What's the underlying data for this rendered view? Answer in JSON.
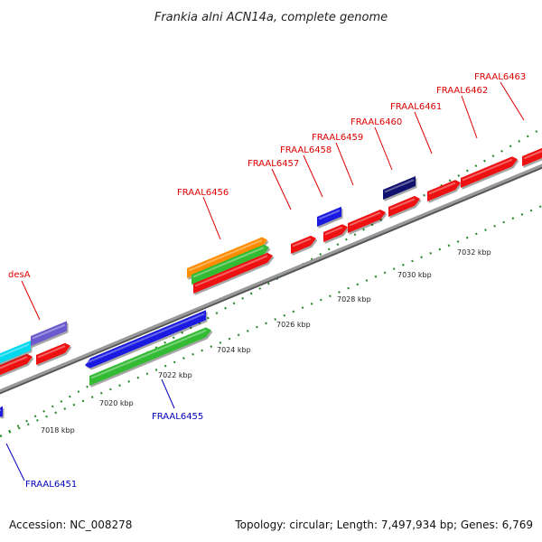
{
  "map_title": "Frankia alni ACN14a, complete genome",
  "footer": {
    "accession": "Accession: NC_008278",
    "summary": "Topology: circular; Length: 7,497,934 bp; Genes: 6,769"
  },
  "scale_labels": [
    "7018 kbp",
    "7020 kbp",
    "7022 kbp",
    "7024 kbp",
    "7026 kbp",
    "7028 kbp",
    "7030 kbp",
    "7032 kbp"
  ],
  "gene_labels": {
    "desA": "desA",
    "FRAAL6451": "FRAAL6451",
    "FRAAL6455": "FRAAL6455",
    "FRAAL6456": "FRAAL6456",
    "FRAAL6457": "FRAAL6457",
    "FRAAL6458": "FRAAL6458",
    "FRAAL6459": "FRAAL6459",
    "FRAAL6460": "FRAAL6460",
    "FRAAL6461": "FRAAL6461",
    "FRAAL6462": "FRAAL6462",
    "FRAAL6463": "FRAAL6463"
  },
  "colors": {
    "backbone": "#8c8c8c",
    "tick": "#2e8b2e",
    "red": "#ee1111",
    "blue": "#1a1ae0",
    "navy": "#10106e",
    "green": "#33bb33",
    "orange": "#ff8c00",
    "cyan": "#00d8ee",
    "purple": "#6a5acd",
    "label_red": "#dd0000",
    "label_blue": "#0000bb"
  }
}
